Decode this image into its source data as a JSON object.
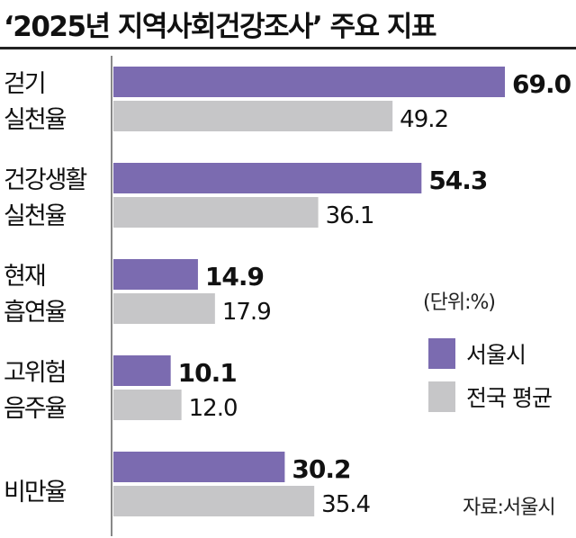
{
  "title": "‘2025년 지역사회건강조사’ 주요 지표",
  "unit_note": "(단위:%)",
  "source": "자료:서울시",
  "colors": {
    "seoul": "#7b6bb0",
    "national": "#c6c6c8",
    "axis": "#888888"
  },
  "chart_data": {
    "type": "bar",
    "orientation": "horizontal",
    "title": "‘2025년 지역사회건강조사’ 주요 지표",
    "categories": [
      [
        "걷기",
        "실천율"
      ],
      [
        "건강생활",
        "실천율"
      ],
      [
        "현재",
        "흡연율"
      ],
      [
        "고위험",
        "음주율"
      ],
      [
        "비만율"
      ]
    ],
    "series": [
      {
        "name": "서울시",
        "values": [
          69.0,
          54.3,
          14.9,
          10.1,
          30.2
        ],
        "labels": [
          "69.0",
          "54.3",
          "14.9",
          "10.1",
          "30.2"
        ]
      },
      {
        "name": "전국 평균",
        "values": [
          49.2,
          36.1,
          17.9,
          12.0,
          35.4
        ],
        "labels": [
          "49.2",
          "36.1",
          "17.9",
          "12.0",
          "35.4"
        ]
      }
    ],
    "xlim": [
      0,
      70
    ],
    "legend": "right",
    "grid": false
  }
}
